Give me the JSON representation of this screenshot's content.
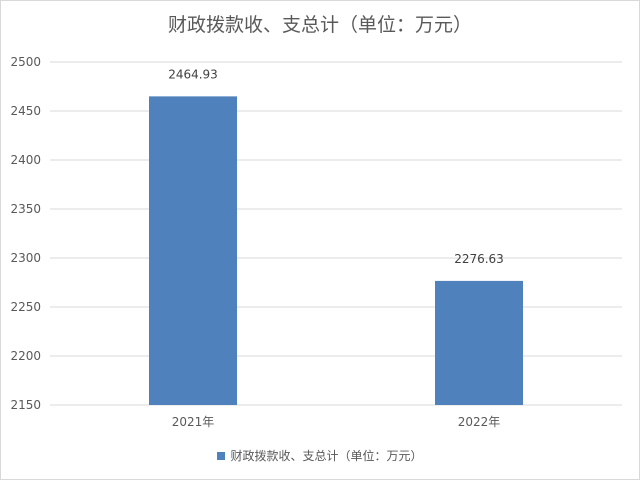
{
  "chart_data": {
    "type": "bar",
    "title": "财政拨款收、支总计（单位：万元）",
    "categories": [
      "2021年",
      "2022年"
    ],
    "series": [
      {
        "name": "财政拨款收、支总计（单位：万元）",
        "values": [
          2464.93,
          2276.63
        ],
        "data_labels": [
          "2464.93",
          "2276.63"
        ]
      }
    ],
    "y_ticks": [
      "2150",
      "2200",
      "2250",
      "2300",
      "2350",
      "2400",
      "2450",
      "2500"
    ],
    "ylim": [
      2150,
      2500
    ],
    "grid": true,
    "legend": "bottom",
    "colors": {
      "bar": "#4f81bd",
      "grid": "#d9d9d9",
      "text": "#595959"
    }
  }
}
